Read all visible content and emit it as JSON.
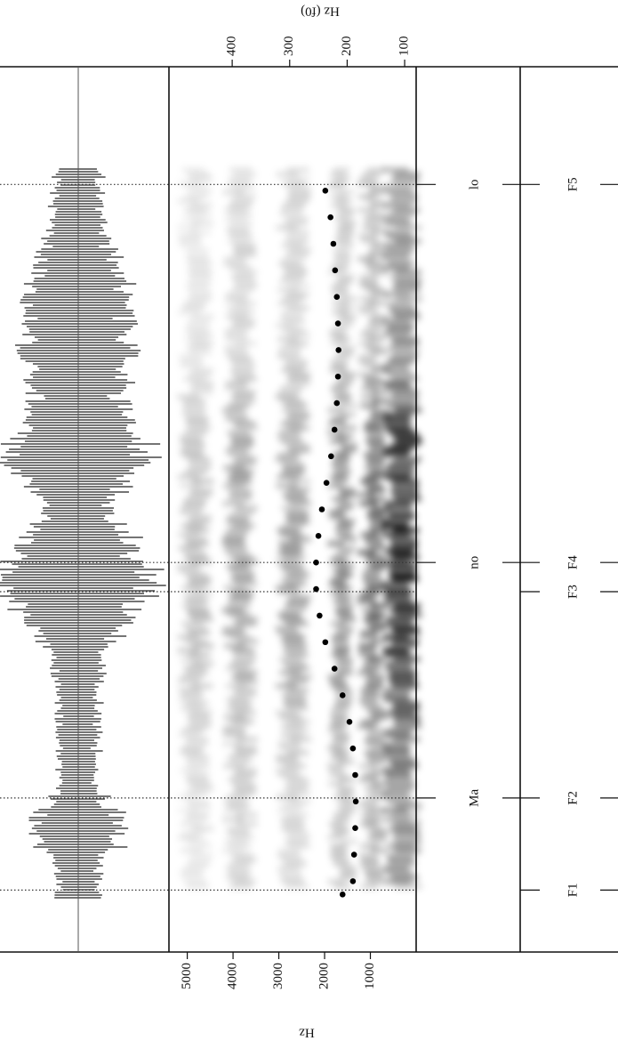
{
  "chart_data": {
    "type": "spectrogram",
    "ylabel": "Hz",
    "y2label": "Hz (f0)",
    "xlim": [
      0,
      1
    ],
    "ylim": [
      0,
      5400
    ],
    "yticks": [
      1000,
      2000,
      3000,
      4000,
      5000
    ],
    "y2lim": [
      80,
      510
    ],
    "y2ticks": [
      100,
      200,
      300,
      400
    ],
    "f0": {
      "axis": "y2",
      "color": "#000000",
      "x": [
        0.065,
        0.08,
        0.11,
        0.14,
        0.17,
        0.2,
        0.23,
        0.26,
        0.29,
        0.32,
        0.35,
        0.38,
        0.41,
        0.44,
        0.47,
        0.5,
        0.53,
        0.56,
        0.59,
        0.62,
        0.65,
        0.68,
        0.71,
        0.74,
        0.77,
        0.8,
        0.83,
        0.86
      ],
      "values": [
        208,
        190,
        188,
        186,
        185,
        186,
        190,
        196,
        208,
        222,
        238,
        248,
        254,
        254,
        250,
        244,
        236,
        228,
        222,
        218,
        216,
        215,
        216,
        218,
        221,
        224,
        229,
        238
      ]
    },
    "tiers": [
      {
        "points": [
          {
            "time": 0.174,
            "label": "Ma"
          },
          {
            "time": 0.44,
            "label": "no"
          },
          {
            "time": 0.867,
            "label": "lo"
          }
        ]
      },
      {
        "points": [
          {
            "time": 0.07,
            "label": "F1"
          },
          {
            "time": 0.174,
            "label": "F2"
          },
          {
            "time": 0.407,
            "label": "F3"
          },
          {
            "time": 0.44,
            "label": "F4"
          },
          {
            "time": 0.867,
            "label": "F5"
          }
        ]
      }
    ]
  }
}
